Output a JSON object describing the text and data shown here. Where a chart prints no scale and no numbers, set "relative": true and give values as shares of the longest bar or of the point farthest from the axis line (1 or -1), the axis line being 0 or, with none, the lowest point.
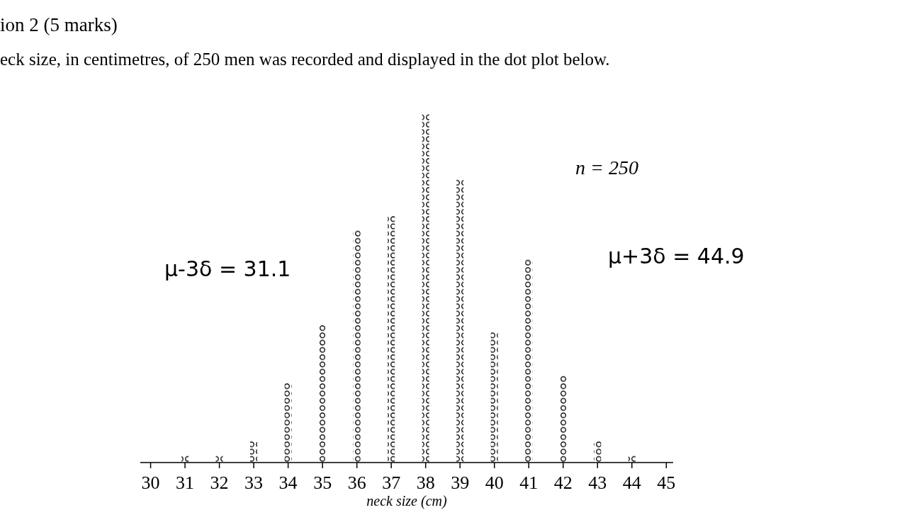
{
  "chart_data": {
    "type": "bar",
    "relative": true,
    "title": "ion 2 (5 marks)",
    "subtitle": "eck size, in centimetres, of 250 men was recorded and displayed in the dot plot below.",
    "xlabel": "neck size (cm)",
    "annotations": [
      "n = 250",
      "μ-3δ = 31.1",
      "μ+3δ = 44.9"
    ],
    "x": [
      31,
      32,
      33,
      34,
      35,
      36,
      37,
      38,
      39,
      40,
      41,
      42,
      43,
      44
    ],
    "series": [
      {
        "color": "#000000",
        "values": [
          0.0208,
          0.0208,
          0.0625,
          0.229,
          0.396,
          0.667,
          0.708,
          1,
          0.8125,
          0.375,
          0.583,
          0.25,
          0.0625,
          0.0208
        ]
      }
    ],
    "xlim": [
      29.7,
      45.2
    ],
    "xticks": [
      30,
      31,
      32,
      33,
      34,
      35,
      36,
      37,
      38,
      39,
      40,
      41,
      42,
      43,
      44,
      45
    ],
    "tick_labels": "x"
  }
}
